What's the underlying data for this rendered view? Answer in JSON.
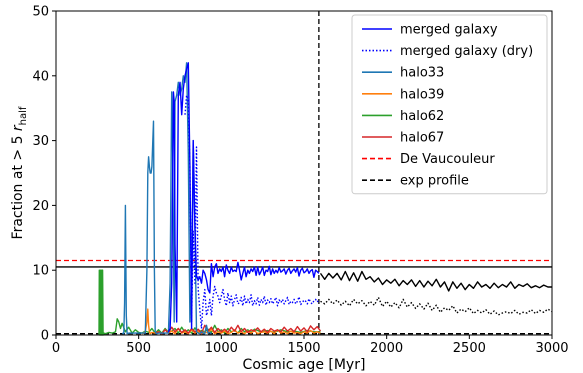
{
  "chart_data": {
    "type": "line",
    "title": "",
    "xlabel": "Cosmic age [Myr]",
    "ylabel_main": "Fraction at > 5 ",
    "ylabel_r": "r",
    "ylabel_sub": "half",
    "xlim": [
      0,
      3000
    ],
    "ylim": [
      0,
      50
    ],
    "xticks": [
      0,
      500,
      1000,
      1500,
      2000,
      2500,
      3000
    ],
    "yticks": [
      0,
      10,
      20,
      30,
      40,
      50
    ],
    "grid": false,
    "legend_position": "top-right",
    "reference_lines": [
      {
        "name": "De Vaucouleur",
        "orientation": "horizontal",
        "value": 11.5,
        "color": "#ff0000",
        "dash": true
      },
      {
        "name": "exp profile",
        "orientation": "horizontal",
        "value": 0.2,
        "color": "#000000",
        "dash": true
      },
      {
        "name": "",
        "orientation": "horizontal",
        "value": 10.5,
        "color": "#000000",
        "dash": false
      },
      {
        "name": "",
        "orientation": "vertical",
        "value": 1590,
        "color": "#000000",
        "dash": true
      }
    ],
    "series": [
      {
        "name": "merged galaxy",
        "color": "#0000ff",
        "style": "solid",
        "x": [
          680,
          690,
          700,
          710,
          715,
          720,
          730,
          740,
          750,
          760,
          770,
          780,
          790,
          800,
          810,
          820,
          830,
          840,
          850,
          860,
          870,
          880,
          890,
          900,
          910,
          920,
          930,
          940,
          950,
          960,
          970,
          980,
          990,
          1000,
          1010,
          1020,
          1030,
          1040,
          1050,
          1060,
          1070,
          1080,
          1090,
          1100,
          1110,
          1120,
          1130,
          1140,
          1150,
          1160,
          1170,
          1180,
          1190,
          1200,
          1210,
          1220,
          1230,
          1240,
          1250,
          1260,
          1270,
          1280,
          1290,
          1300,
          1310,
          1320,
          1330,
          1340,
          1350,
          1360,
          1370,
          1380,
          1390,
          1400,
          1410,
          1420,
          1430,
          1440,
          1450,
          1460,
          1470,
          1480,
          1490,
          1500,
          1510,
          1520,
          1530,
          1540,
          1550,
          1560,
          1570,
          1580,
          1590
        ],
        "y": [
          0.5,
          1,
          8,
          37.5,
          36,
          14,
          2,
          37,
          39,
          34,
          38,
          40,
          41,
          42,
          26,
          1,
          30,
          17,
          9,
          8.5,
          9,
          8,
          10,
          9.5,
          8.5,
          7,
          6.5,
          11,
          9,
          10.5,
          11,
          9.5,
          10.2,
          9.8,
          10.5,
          9,
          10.8,
          10,
          9.5,
          10.5,
          9.8,
          10,
          9.8,
          11.2,
          10,
          8.5,
          9.5,
          10.5,
          9,
          10,
          9.5,
          10.2,
          9.8,
          10.5,
          9.2,
          10.5,
          9.3,
          9.8,
          10.5,
          9.2,
          10,
          9.8,
          10.6,
          9.3,
          10.2,
          9.5,
          10,
          9.6,
          10.4,
          9.7,
          9.9,
          10.2,
          9.4,
          10,
          10.3,
          9.5,
          9.9,
          10.2,
          9.7,
          10.4,
          9.1,
          10,
          10.3,
          9.6,
          9.8,
          10.2,
          9.5,
          9.9,
          10.1,
          8.9,
          10,
          9.8,
          9.5
        ]
      },
      {
        "name": "merged galaxy (dry)",
        "color": "#0000ff",
        "style": "dotted",
        "x": [
          780,
          790,
          800,
          810,
          820,
          830,
          840,
          850,
          860,
          870,
          880,
          890,
          900,
          910,
          920,
          930,
          940,
          950,
          960,
          970,
          980,
          990,
          1000,
          1010,
          1020,
          1030,
          1040,
          1050,
          1060,
          1070,
          1080,
          1090,
          1100,
          1110,
          1120,
          1130,
          1140,
          1150,
          1160,
          1170,
          1180,
          1190,
          1200,
          1210,
          1220,
          1230,
          1240,
          1250,
          1260,
          1270,
          1280,
          1290,
          1300,
          1310,
          1320,
          1330,
          1340,
          1350,
          1360,
          1370,
          1380,
          1390,
          1400,
          1410,
          1420,
          1430,
          1440,
          1450,
          1460,
          1470,
          1480,
          1490,
          1500,
          1510,
          1520,
          1530,
          1540,
          1550,
          1560,
          1570,
          1580,
          1590
        ],
        "y": [
          34,
          37,
          36,
          26,
          2,
          16,
          8,
          29,
          7,
          4,
          1,
          5,
          7,
          3,
          4,
          5.5,
          3,
          6,
          7.5,
          6.5,
          6,
          5,
          6,
          7,
          5.5,
          4.5,
          6.5,
          5,
          6,
          4.5,
          5.5,
          6.2,
          4.8,
          5,
          5.8,
          4.5,
          6,
          4.8,
          5.5,
          5,
          6.2,
          4.5,
          5.3,
          4.8,
          5.8,
          4.6,
          5.5,
          5,
          6,
          4.6,
          5.4,
          5,
          5.6,
          4.8,
          5.2,
          5.8,
          4.5,
          5.4,
          5,
          5.5,
          4.8,
          5.3,
          5.8,
          4.7,
          5.2,
          5,
          5.5,
          4.8,
          5.2,
          5.9,
          4.7,
          5,
          5.4,
          5.2,
          4.8,
          5.6,
          5,
          4.8,
          5.3,
          5.5,
          5.1,
          5.4
        ]
      },
      {
        "name": "",
        "color": "#000000",
        "style": "solid",
        "x": [
          1600,
          1625,
          1650,
          1675,
          1700,
          1725,
          1750,
          1775,
          1800,
          1825,
          1850,
          1875,
          1900,
          1925,
          1950,
          1975,
          2000,
          2025,
          2050,
          2075,
          2100,
          2125,
          2150,
          2175,
          2200,
          2225,
          2250,
          2275,
          2300,
          2325,
          2350,
          2375,
          2400,
          2425,
          2450,
          2475,
          2500,
          2525,
          2550,
          2575,
          2600,
          2625,
          2650,
          2675,
          2700,
          2725,
          2750,
          2775,
          2800,
          2825,
          2850,
          2875,
          2900,
          2925,
          2950,
          2975,
          3000
        ],
        "y": [
          9.5,
          8.6,
          9.5,
          8.8,
          9.5,
          8.5,
          9.8,
          8.4,
          9.6,
          8.3,
          9.8,
          8.6,
          9,
          8.2,
          8.8,
          7.8,
          8.5,
          8,
          8.6,
          7.6,
          8.4,
          7.8,
          8.5,
          7.5,
          8.4,
          7.4,
          8.3,
          7.6,
          8.6,
          7.4,
          8.2,
          6.8,
          8.2,
          7.2,
          8,
          7,
          7.8,
          7.2,
          8.2,
          7.4,
          7.8,
          7.2,
          8,
          7.3,
          7.8,
          7.4,
          8.2,
          7.2,
          7.8,
          7.5,
          7.9,
          7.3,
          7.6,
          7.3,
          7.7,
          7.4,
          7.4
        ]
      },
      {
        "name": "",
        "color": "#000000",
        "style": "dotted",
        "x": [
          1600,
          1625,
          1650,
          1675,
          1700,
          1725,
          1750,
          1775,
          1800,
          1825,
          1850,
          1875,
          1900,
          1925,
          1950,
          1975,
          2000,
          2025,
          2050,
          2075,
          2100,
          2125,
          2150,
          2175,
          2200,
          2225,
          2250,
          2275,
          2300,
          2325,
          2350,
          2375,
          2400,
          2425,
          2450,
          2475,
          2500,
          2525,
          2550,
          2575,
          2600,
          2625,
          2650,
          2675,
          2700,
          2725,
          2750,
          2775,
          2800,
          2825,
          2850,
          2875,
          2900,
          2925,
          2950,
          2975,
          3000
        ],
        "y": [
          5.2,
          4.8,
          5.5,
          4.8,
          5.4,
          4.6,
          5.2,
          4.5,
          5.5,
          4.8,
          5.3,
          4.5,
          5.2,
          4.6,
          5.8,
          4.4,
          5.2,
          4.3,
          5,
          4.2,
          5.5,
          4.3,
          5,
          4.1,
          4.8,
          4,
          4.9,
          3.8,
          4.6,
          3.5,
          4.2,
          3.8,
          4.5,
          3.4,
          4,
          3.6,
          4.2,
          3.3,
          3.8,
          3.4,
          3.9,
          3.2,
          3.7,
          3.1,
          3.4,
          3.6,
          3.3,
          3.8,
          3.2,
          3.5,
          3.4,
          3.9,
          3.3,
          3.8,
          3.5,
          4,
          3.6
        ]
      },
      {
        "name": "halo33",
        "color": "#1f77b4",
        "style": "solid",
        "x": [
          400,
          410,
          415,
          420,
          425,
          430,
          440,
          540,
          550,
          555,
          560,
          565,
          570,
          575,
          580,
          590,
          595,
          600,
          605,
          610,
          620,
          680,
          690,
          700,
          705,
          710,
          715,
          720,
          730,
          740,
          750,
          760,
          770,
          780,
          790,
          800,
          810,
          820,
          830,
          840,
          850,
          860,
          870,
          880,
          890,
          900,
          910,
          920,
          930,
          940
        ],
        "y": [
          0.3,
          0.2,
          5,
          20,
          3,
          0.2,
          0.3,
          0.3,
          10,
          25,
          27.5,
          26,
          25,
          25,
          26,
          33,
          10,
          0.5,
          0.3,
          0.2,
          0.3,
          0.3,
          8,
          37.5,
          30,
          14,
          2,
          36,
          37,
          39,
          37,
          38,
          40,
          39,
          42,
          28,
          2,
          8,
          30,
          17,
          0.5,
          0.3,
          0.2,
          0.5,
          0.3,
          0.2,
          1.5,
          0.3,
          0.4,
          0.2
        ]
      },
      {
        "name": "halo39",
        "color": "#ff7f0e",
        "style": "solid",
        "x": [
          520,
          530,
          540,
          550,
          555,
          560,
          565,
          570,
          580,
          600,
          620,
          640,
          660,
          680,
          700,
          720,
          740,
          760,
          780,
          800,
          820,
          840,
          860,
          880,
          900,
          920,
          940,
          960,
          980,
          1000,
          1020,
          1040,
          1060,
          1080,
          1100,
          1120,
          1140,
          1160,
          1180,
          1200,
          1220,
          1240,
          1260,
          1280,
          1300,
          1320,
          1340,
          1360,
          1380,
          1400,
          1420,
          1440,
          1460,
          1480,
          1500,
          1520,
          1540,
          1560,
          1580,
          1600
        ],
        "y": [
          0.2,
          0.3,
          0.5,
          2,
          4,
          1.5,
          0.5,
          0.2,
          0.4,
          0.3,
          0.5,
          0.2,
          0.8,
          0.3,
          0.6,
          0.2,
          1,
          0.3,
          0.5,
          0.2,
          0.8,
          0.3,
          0.6,
          0.2,
          0.5,
          0.3,
          0.9,
          0.2,
          0.5,
          0.3,
          0.6,
          0.2,
          0.4,
          0.8,
          0.3,
          0.5,
          0.2,
          0.6,
          0.3,
          0.7,
          0.2,
          0.4,
          0.5,
          0.3,
          0.6,
          0.2,
          0.8,
          0.3,
          0.5,
          0.2,
          0.6,
          0.3,
          0.4,
          0.2,
          0.5,
          0.3,
          0.7,
          0.3,
          0.5,
          0.3
        ]
      },
      {
        "name": "halo62",
        "color": "#2ca02c",
        "style": "solid",
        "x": [
          260,
          262,
          265,
          268,
          270,
          272,
          275,
          278,
          280,
          282,
          285,
          290,
          300,
          320,
          340,
          360,
          370,
          380,
          390,
          400,
          420,
          440,
          460,
          480,
          500,
          520,
          540,
          560,
          580,
          600,
          620,
          640,
          660,
          680,
          700,
          720,
          740,
          760,
          780,
          800,
          820,
          840,
          860,
          880,
          900,
          920,
          940,
          960,
          980,
          1000,
          1020,
          1040,
          1060,
          1080,
          1100,
          1120,
          1140,
          1160,
          1180,
          1200,
          1240,
          1280,
          1320,
          1360,
          1400,
          1440,
          1480,
          1520,
          1560,
          1600
        ],
        "y": [
          0,
          10,
          0,
          10,
          0,
          10,
          0,
          10,
          0,
          10,
          0,
          0.3,
          0.2,
          0.4,
          0.3,
          0.5,
          2.5,
          2,
          1,
          1.8,
          0.5,
          1.2,
          0.3,
          0.8,
          0.4,
          0.3,
          0.6,
          0.4,
          1,
          0.3,
          0.8,
          0.3,
          1,
          0.4,
          0.6,
          1,
          0.3,
          1.2,
          0.4,
          0.8,
          0.3,
          1.1,
          0.4,
          0.7,
          0.5,
          0.9,
          0.4,
          1.5,
          0.5,
          0.8,
          0.3,
          1,
          0.5,
          0.7,
          0.3,
          1,
          0.5,
          0.8,
          0.4,
          0.9,
          0.5,
          0.7,
          0.4,
          0.8,
          0.5,
          0.6,
          0.4,
          0.7,
          0.5,
          0.5
        ]
      },
      {
        "name": "halo67",
        "color": "#d62728",
        "style": "solid",
        "x": [
          600,
          620,
          640,
          660,
          680,
          700,
          720,
          740,
          760,
          780,
          800,
          820,
          840,
          860,
          880,
          900,
          920,
          940,
          960,
          980,
          1000,
          1020,
          1040,
          1060,
          1080,
          1100,
          1120,
          1140,
          1160,
          1180,
          1200,
          1220,
          1240,
          1260,
          1280,
          1300,
          1320,
          1340,
          1360,
          1380,
          1400,
          1420,
          1440,
          1460,
          1480,
          1500,
          1520,
          1540,
          1560,
          1580,
          1600
        ],
        "y": [
          0.3,
          0.5,
          0.2,
          0.8,
          0.3,
          1.2,
          0.5,
          1,
          0.4,
          0.8,
          0.3,
          1,
          0.5,
          0.9,
          0.3,
          1.5,
          0.6,
          1.2,
          0.4,
          1,
          0.5,
          0.9,
          0.4,
          1.2,
          0.6,
          1.5,
          0.5,
          1,
          0.4,
          0.8,
          0.6,
          1.1,
          0.5,
          0.9,
          0.4,
          1,
          0.6,
          0.8,
          0.5,
          1.2,
          0.6,
          1,
          0.5,
          1.3,
          0.6,
          1.1,
          0.5,
          1.4,
          0.8,
          1.3,
          0.6
        ]
      }
    ],
    "legend": [
      {
        "label": "merged galaxy",
        "color": "#0000ff",
        "dash": "solid"
      },
      {
        "label": "merged galaxy (dry)",
        "color": "#0000ff",
        "dash": "dotted"
      },
      {
        "label": "halo33",
        "color": "#1f77b4",
        "dash": "solid"
      },
      {
        "label": "halo39",
        "color": "#ff7f0e",
        "dash": "solid"
      },
      {
        "label": "halo62",
        "color": "#2ca02c",
        "dash": "solid"
      },
      {
        "label": "halo67",
        "color": "#d62728",
        "dash": "solid"
      },
      {
        "label": "De Vaucouleur",
        "color": "#ff0000",
        "dash": "dashed"
      },
      {
        "label": "exp profile",
        "color": "#000000",
        "dash": "dashed"
      }
    ]
  }
}
